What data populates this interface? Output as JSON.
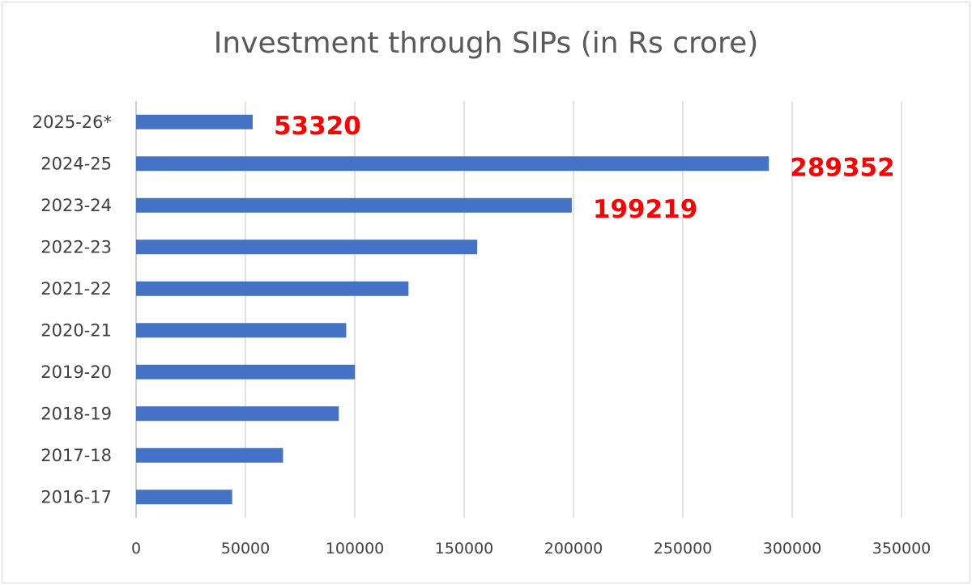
{
  "chart_data": {
    "type": "bar",
    "orientation": "horizontal",
    "title": "Investment through SIPs (in Rs crore)",
    "xlabel": "",
    "ylabel": "",
    "xlim": [
      0,
      350000
    ],
    "x_ticks": [
      "0",
      "50000",
      "100000",
      "150000",
      "200000",
      "250000",
      "300000",
      "350000"
    ],
    "grid": "vertical",
    "legend": "none",
    "bar_color": "#4472c4",
    "label_color": "#ff0000",
    "categories": [
      "2025-26*",
      "2024-25",
      "2023-24",
      "2022-23",
      "2021-22",
      "2020-21",
      "2019-20",
      "2018-19",
      "2017-18",
      "2016-17"
    ],
    "values": [
      53320,
      289352,
      199219,
      155972,
      124566,
      96080,
      100084,
      92693,
      67190,
      43921
    ],
    "data_labels": [
      "53320",
      "289352",
      "199219",
      null,
      null,
      null,
      null,
      null,
      null,
      null
    ]
  }
}
